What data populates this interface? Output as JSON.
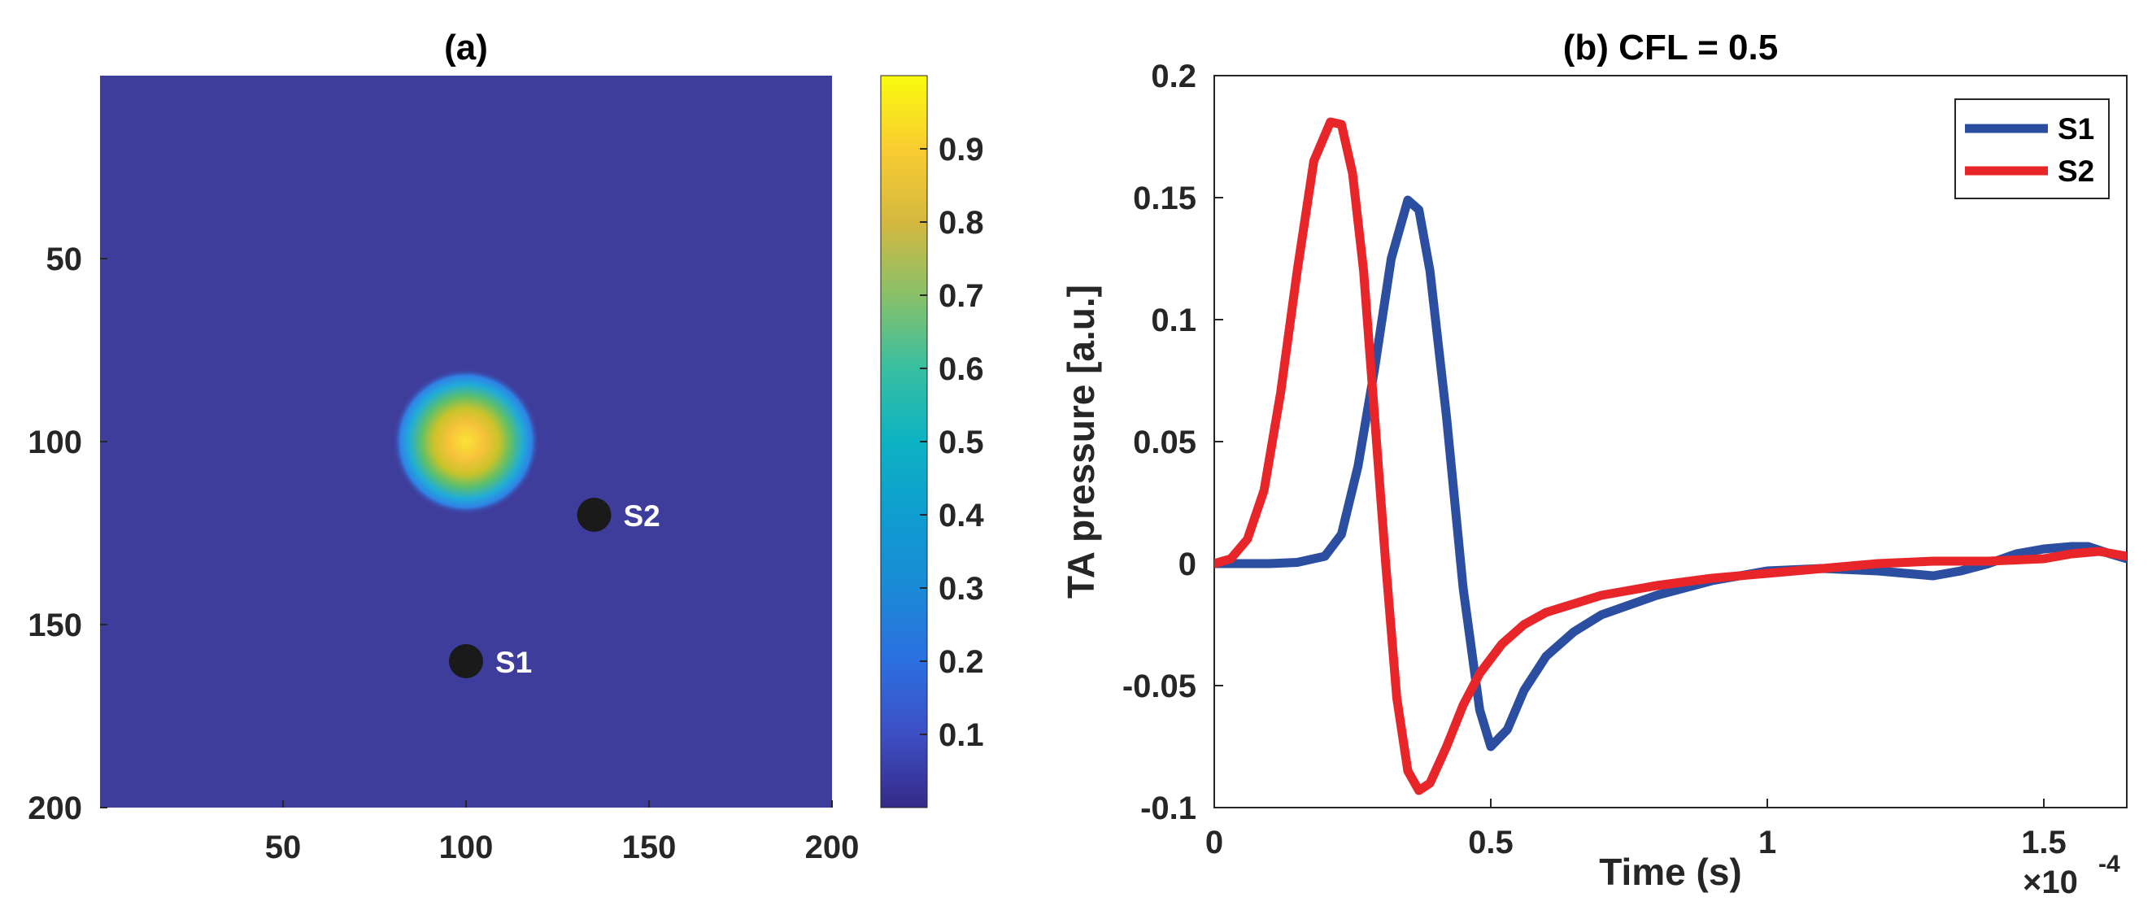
{
  "chart_data": [
    {
      "type": "heatmap",
      "title": "(a)",
      "xlabel": "",
      "ylabel": "",
      "xlim": [
        0,
        200
      ],
      "ylim": [
        0,
        200
      ],
      "y_reversed": true,
      "xticks": [
        "50",
        "100",
        "150",
        "200"
      ],
      "yticks": [
        "50",
        "100",
        "150",
        "200"
      ],
      "colormap": "parula",
      "colorbar": {
        "range": [
          0,
          1
        ],
        "ticks": [
          "0.1",
          "0.2",
          "0.3",
          "0.4",
          "0.5",
          "0.6",
          "0.7",
          "0.8",
          "0.9"
        ]
      },
      "source": {
        "shape": "gaussian disk",
        "center": [
          100,
          100
        ],
        "radius": 20,
        "peak": 1.0
      },
      "markers": [
        {
          "label": "S1",
          "x": 100,
          "y": 160
        },
        {
          "label": "S2",
          "x": 135,
          "y": 120
        }
      ]
    },
    {
      "type": "line",
      "title": "(b) CFL = 0.5",
      "xlabel": "Time (s)",
      "ylabel": "TA pressure [a.u.]",
      "x_exponent": "×10",
      "x_exponent_power": "-4",
      "xlim": [
        0,
        1.65
      ],
      "ylim": [
        -0.1,
        0.2
      ],
      "xticks": [
        "0",
        "0.5",
        "1",
        "1.5"
      ],
      "yticks": [
        "0.2",
        "0.15",
        "0.1",
        "0.05",
        "0",
        "-0.05",
        "-0.1"
      ],
      "legend_position": "top-right",
      "series": [
        {
          "name": "S1",
          "color": "#2c4ea0",
          "x": [
            0,
            0.1,
            0.15,
            0.2,
            0.23,
            0.26,
            0.29,
            0.32,
            0.35,
            0.37,
            0.39,
            0.42,
            0.45,
            0.48,
            0.5,
            0.53,
            0.56,
            0.6,
            0.65,
            0.7,
            0.8,
            0.9,
            1.0,
            1.1,
            1.2,
            1.3,
            1.35,
            1.4,
            1.45,
            1.5,
            1.55,
            1.58,
            1.62,
            1.65
          ],
          "y": [
            0,
            0,
            0.0005,
            0.003,
            0.012,
            0.04,
            0.08,
            0.125,
            0.149,
            0.145,
            0.12,
            0.06,
            -0.01,
            -0.06,
            -0.075,
            -0.068,
            -0.052,
            -0.038,
            -0.028,
            -0.021,
            -0.013,
            -0.007,
            -0.003,
            -0.002,
            -0.003,
            -0.005,
            -0.003,
            0.0,
            0.004,
            0.006,
            0.007,
            0.007,
            0.004,
            0.002
          ]
        },
        {
          "name": "S2",
          "color": "#e8262a",
          "x": [
            0,
            0.03,
            0.06,
            0.09,
            0.12,
            0.15,
            0.18,
            0.21,
            0.23,
            0.25,
            0.27,
            0.29,
            0.31,
            0.33,
            0.35,
            0.37,
            0.39,
            0.42,
            0.45,
            0.48,
            0.52,
            0.56,
            0.6,
            0.7,
            0.8,
            0.9,
            1.0,
            1.1,
            1.2,
            1.3,
            1.4,
            1.5,
            1.55,
            1.6,
            1.65
          ],
          "y": [
            0,
            0.002,
            0.01,
            0.03,
            0.07,
            0.12,
            0.165,
            0.181,
            0.18,
            0.16,
            0.12,
            0.06,
            0.0,
            -0.055,
            -0.085,
            -0.093,
            -0.09,
            -0.075,
            -0.058,
            -0.045,
            -0.033,
            -0.025,
            -0.02,
            -0.013,
            -0.009,
            -0.006,
            -0.004,
            -0.002,
            0.0,
            0.001,
            0.001,
            0.002,
            0.004,
            0.005,
            0.003
          ]
        }
      ]
    }
  ]
}
